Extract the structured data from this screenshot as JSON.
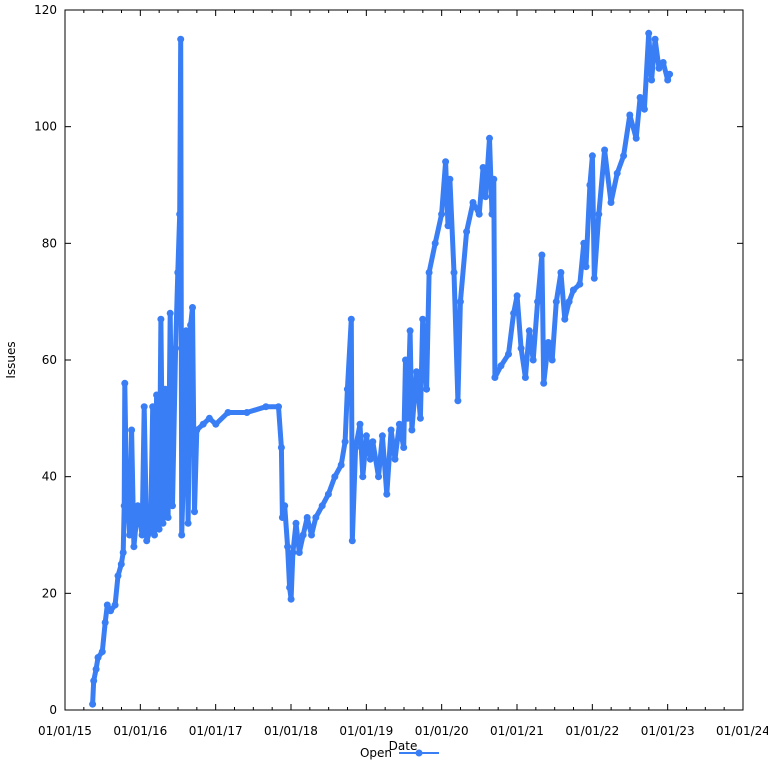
{
  "chart_data": {
    "type": "line",
    "xlabel": "Date",
    "ylabel": "Issues",
    "x_axis_type": "date",
    "xlim": [
      "2015-01-01",
      "2024-01-01"
    ],
    "ylim": [
      0,
      120
    ],
    "x_ticks": [
      "01/01/15",
      "01/01/16",
      "01/01/17",
      "01/01/18",
      "01/01/19",
      "01/01/20",
      "01/01/21",
      "01/01/22",
      "01/01/23",
      "01/01/24"
    ],
    "y_ticks": [
      0,
      20,
      40,
      60,
      80,
      100,
      120
    ],
    "grid": false,
    "legend_position": "bottom-center",
    "series": [
      {
        "name": "Open",
        "color": "#3a7ef5",
        "marker": "circle",
        "points": [
          [
            "2015-05-15",
            1
          ],
          [
            "2015-05-20",
            5
          ],
          [
            "2015-06-01",
            7
          ],
          [
            "2015-06-10",
            9
          ],
          [
            "2015-07-01",
            10
          ],
          [
            "2015-07-15",
            15
          ],
          [
            "2015-07-25",
            18
          ],
          [
            "2015-08-10",
            17
          ],
          [
            "2015-09-01",
            18
          ],
          [
            "2015-09-15",
            23
          ],
          [
            "2015-10-01",
            25
          ],
          [
            "2015-10-10",
            27
          ],
          [
            "2015-10-15",
            35
          ],
          [
            "2015-10-18",
            56
          ],
          [
            "2015-10-25",
            40
          ],
          [
            "2015-11-10",
            30
          ],
          [
            "2015-11-20",
            48
          ],
          [
            "2015-12-01",
            28
          ],
          [
            "2015-12-20",
            35
          ],
          [
            "2016-01-10",
            30
          ],
          [
            "2016-01-20",
            52
          ],
          [
            "2016-02-01",
            29
          ],
          [
            "2016-02-20",
            31
          ],
          [
            "2016-03-01",
            52
          ],
          [
            "2016-03-10",
            30
          ],
          [
            "2016-03-20",
            54
          ],
          [
            "2016-04-01",
            31
          ],
          [
            "2016-04-10",
            67
          ],
          [
            "2016-04-20",
            32
          ],
          [
            "2016-05-01",
            55
          ],
          [
            "2016-05-15",
            33
          ],
          [
            "2016-05-25",
            68
          ],
          [
            "2016-06-05",
            35
          ],
          [
            "2016-06-20",
            62
          ],
          [
            "2016-07-01",
            75
          ],
          [
            "2016-07-10",
            85
          ],
          [
            "2016-07-15",
            115
          ],
          [
            "2016-07-20",
            30
          ],
          [
            "2016-08-01",
            45
          ],
          [
            "2016-08-10",
            65
          ],
          [
            "2016-08-20",
            32
          ],
          [
            "2016-09-01",
            66
          ],
          [
            "2016-09-10",
            69
          ],
          [
            "2016-09-20",
            34
          ],
          [
            "2016-10-01",
            48
          ],
          [
            "2016-11-01",
            49
          ],
          [
            "2016-12-01",
            50
          ],
          [
            "2017-01-01",
            49
          ],
          [
            "2017-03-01",
            51
          ],
          [
            "2017-06-01",
            51
          ],
          [
            "2017-09-01",
            52
          ],
          [
            "2017-11-01",
            52
          ],
          [
            "2017-11-15",
            45
          ],
          [
            "2017-11-20",
            33
          ],
          [
            "2017-12-01",
            35
          ],
          [
            "2017-12-15",
            28
          ],
          [
            "2017-12-25",
            21
          ],
          [
            "2018-01-01",
            19
          ],
          [
            "2018-01-10",
            27
          ],
          [
            "2018-01-25",
            32
          ],
          [
            "2018-02-10",
            27
          ],
          [
            "2018-03-01",
            30
          ],
          [
            "2018-03-20",
            33
          ],
          [
            "2018-04-10",
            30
          ],
          [
            "2018-05-01",
            33
          ],
          [
            "2018-06-01",
            35
          ],
          [
            "2018-07-01",
            37
          ],
          [
            "2018-08-01",
            40
          ],
          [
            "2018-09-01",
            42
          ],
          [
            "2018-09-20",
            46
          ],
          [
            "2018-10-01",
            55
          ],
          [
            "2018-10-20",
            67
          ],
          [
            "2018-10-25",
            29
          ],
          [
            "2018-11-10",
            45
          ],
          [
            "2018-12-01",
            49
          ],
          [
            "2018-12-15",
            40
          ],
          [
            "2019-01-01",
            47
          ],
          [
            "2019-01-20",
            43
          ],
          [
            "2019-02-01",
            46
          ],
          [
            "2019-03-01",
            40
          ],
          [
            "2019-03-20",
            47
          ],
          [
            "2019-04-10",
            37
          ],
          [
            "2019-05-01",
            48
          ],
          [
            "2019-05-20",
            43
          ],
          [
            "2019-06-10",
            49
          ],
          [
            "2019-07-01",
            45
          ],
          [
            "2019-07-10",
            60
          ],
          [
            "2019-07-20",
            50
          ],
          [
            "2019-08-01",
            65
          ],
          [
            "2019-08-10",
            48
          ],
          [
            "2019-09-01",
            58
          ],
          [
            "2019-09-20",
            50
          ],
          [
            "2019-10-01",
            67
          ],
          [
            "2019-10-20",
            55
          ],
          [
            "2019-11-01",
            75
          ],
          [
            "2019-12-01",
            80
          ],
          [
            "2020-01-01",
            85
          ],
          [
            "2020-01-20",
            94
          ],
          [
            "2020-02-01",
            83
          ],
          [
            "2020-02-10",
            91
          ],
          [
            "2020-03-01",
            75
          ],
          [
            "2020-03-20",
            53
          ],
          [
            "2020-04-01",
            70
          ],
          [
            "2020-05-01",
            82
          ],
          [
            "2020-06-01",
            87
          ],
          [
            "2020-07-01",
            85
          ],
          [
            "2020-07-20",
            93
          ],
          [
            "2020-08-01",
            88
          ],
          [
            "2020-08-20",
            98
          ],
          [
            "2020-09-01",
            85
          ],
          [
            "2020-09-10",
            91
          ],
          [
            "2020-09-15",
            57
          ],
          [
            "2020-10-15",
            59
          ],
          [
            "2020-11-20",
            61
          ],
          [
            "2020-12-15",
            68
          ],
          [
            "2021-01-01",
            71
          ],
          [
            "2021-01-20",
            62
          ],
          [
            "2021-02-10",
            57
          ],
          [
            "2021-03-01",
            65
          ],
          [
            "2021-03-20",
            60
          ],
          [
            "2021-04-10",
            70
          ],
          [
            "2021-05-01",
            78
          ],
          [
            "2021-05-10",
            56
          ],
          [
            "2021-06-01",
            63
          ],
          [
            "2021-06-20",
            60
          ],
          [
            "2021-07-10",
            70
          ],
          [
            "2021-08-01",
            75
          ],
          [
            "2021-08-20",
            67
          ],
          [
            "2021-09-10",
            70
          ],
          [
            "2021-10-01",
            72
          ],
          [
            "2021-11-01",
            73
          ],
          [
            "2021-11-20",
            80
          ],
          [
            "2021-12-01",
            76
          ],
          [
            "2021-12-20",
            90
          ],
          [
            "2022-01-01",
            95
          ],
          [
            "2022-01-10",
            74
          ],
          [
            "2022-02-01",
            85
          ],
          [
            "2022-03-01",
            96
          ],
          [
            "2022-04-01",
            87
          ],
          [
            "2022-05-01",
            92
          ],
          [
            "2022-06-01",
            95
          ],
          [
            "2022-07-01",
            102
          ],
          [
            "2022-08-01",
            98
          ],
          [
            "2022-08-20",
            105
          ],
          [
            "2022-09-10",
            103
          ],
          [
            "2022-10-01",
            116
          ],
          [
            "2022-10-15",
            108
          ],
          [
            "2022-11-01",
            115
          ],
          [
            "2022-11-20",
            110
          ],
          [
            "2022-12-10",
            111
          ],
          [
            "2023-01-01",
            108
          ],
          [
            "2023-01-10",
            109
          ]
        ]
      }
    ]
  }
}
